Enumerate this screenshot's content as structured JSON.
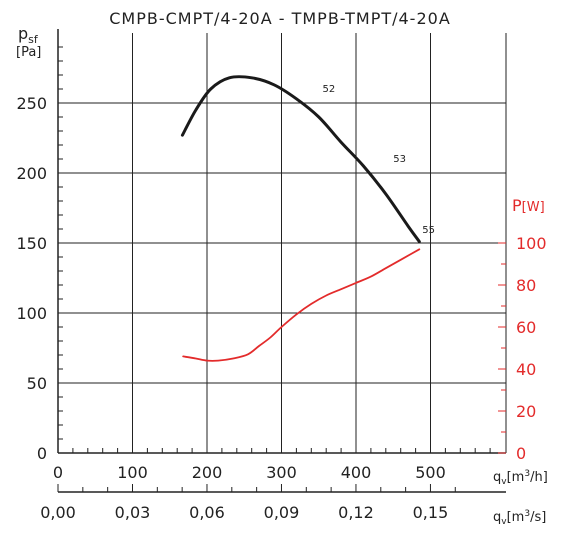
{
  "chart_data": {
    "type": "line",
    "title": "CMPB-CMPT/4-20A - TMPB-TMPT/4-20A",
    "left_axis": {
      "label": "p",
      "label_sub": "sf",
      "unit": "[Pa]",
      "range": [
        0,
        300
      ],
      "ticks": [
        0,
        50,
        100,
        150,
        200,
        250
      ]
    },
    "right_axis": {
      "label": "P",
      "unit": "[W]",
      "range": [
        0,
        140
      ],
      "ticks": [
        0,
        20,
        40,
        60,
        80,
        100
      ]
    },
    "x_axis": {
      "label": "q",
      "label_sub": "v",
      "unit_pre": "[m",
      "unit_sup": "3",
      "unit_post": "/h]",
      "range": [
        0,
        600
      ],
      "ticks": [
        "0",
        "100",
        "200",
        "300",
        "400",
        "500"
      ]
    },
    "x_axis_secondary": {
      "label": "q",
      "label_sub": "v",
      "unit_pre": "[m",
      "unit_sup": "3",
      "unit_post": "/s]",
      "ticks": [
        "0,00",
        "0,03",
        "0,06",
        "0,09",
        "0,12",
        "0,15"
      ]
    },
    "grid": true,
    "series": [
      {
        "axis": "left",
        "color": "#1a1a1a",
        "points": [
          [
            167,
            227
          ],
          [
            185,
            245
          ],
          [
            205,
            260
          ],
          [
            230,
            268
          ],
          [
            260,
            268
          ],
          [
            290,
            263
          ],
          [
            320,
            253
          ],
          [
            350,
            240
          ],
          [
            380,
            222
          ],
          [
            410,
            205
          ],
          [
            440,
            185
          ],
          [
            470,
            162
          ],
          [
            485,
            151
          ]
        ]
      },
      {
        "axis": "right",
        "color": "#e32b2b",
        "points": [
          [
            168,
            46
          ],
          [
            185,
            45
          ],
          [
            200,
            44
          ],
          [
            215,
            44
          ],
          [
            235,
            45
          ],
          [
            255,
            47
          ],
          [
            270,
            51
          ],
          [
            285,
            55
          ],
          [
            300,
            60
          ],
          [
            320,
            66
          ],
          [
            340,
            71
          ],
          [
            360,
            75
          ],
          [
            380,
            78
          ],
          [
            400,
            81
          ],
          [
            420,
            84
          ],
          [
            440,
            88
          ],
          [
            460,
            92
          ],
          [
            475,
            95
          ],
          [
            485,
            97
          ]
        ]
      }
    ],
    "annotations": [
      {
        "text": "52",
        "x": 355,
        "y": 258
      },
      {
        "text": "53",
        "x": 450,
        "y": 208
      },
      {
        "text": "55",
        "x": 489,
        "y": 157
      }
    ]
  }
}
